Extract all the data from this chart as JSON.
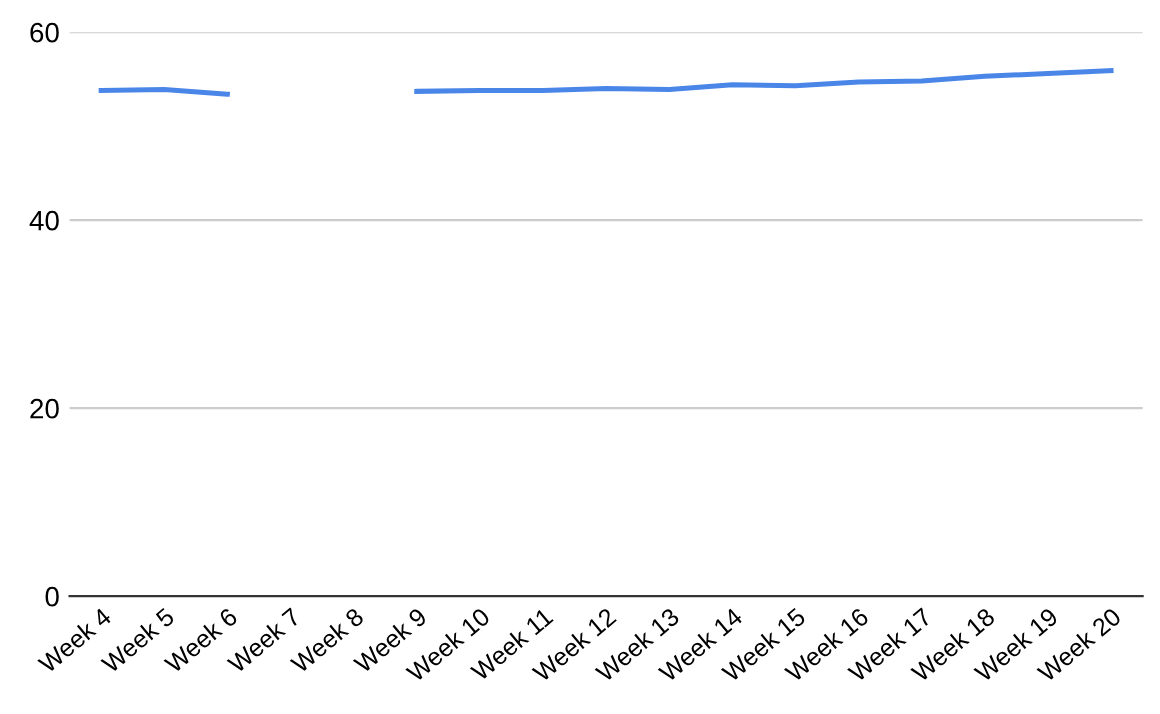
{
  "chart_data": {
    "type": "line",
    "categories": [
      "Week 4",
      "Week 5",
      "Week 6",
      "Week 7",
      "Week 8",
      "Week 9",
      "Week 10",
      "Week 11",
      "Week 12",
      "Week 13",
      "Week 14",
      "Week 15",
      "Week 16",
      "Week 17",
      "Week 18",
      "Week 19",
      "Week 20"
    ],
    "series": [
      {
        "color": "#4a86e8",
        "values": [
          53.8,
          53.9,
          53.4,
          null,
          null,
          53.7,
          53.8,
          53.8,
          54.0,
          53.9,
          54.4,
          54.3,
          54.7,
          54.8,
          55.3,
          55.6,
          55.9
        ]
      }
    ],
    "ylim": [
      0,
      60
    ],
    "yticks": [
      0,
      20,
      40,
      60
    ],
    "grid": "y",
    "line_style": "solid",
    "marker": "none"
  }
}
